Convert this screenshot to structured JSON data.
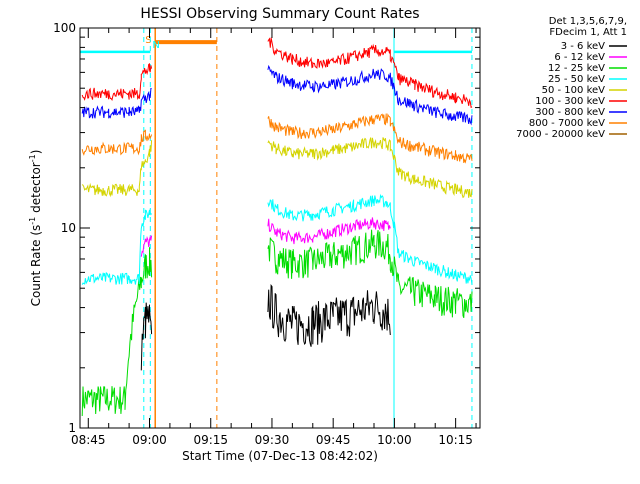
{
  "chart_data": {
    "type": "line",
    "title": "HESSI Observing Summary Count Rates",
    "xlabel": "Start Time (07-Dec-13 08:42:02)",
    "ylabel_main": "Count Rate (s",
    "ylabel_sup": "-1",
    "ylabel_tail": " detector",
    "ylabel_sup2": "-1",
    "ylabel_end": ")",
    "x_range_minutes": [
      -2.03,
      95.97
    ],
    "y_scale": "log",
    "ylim": [
      1,
      100
    ],
    "x_ticks": [
      {
        "m": 0,
        "label": "08:45"
      },
      {
        "m": 15,
        "label": "09:00"
      },
      {
        "m": 30,
        "label": "09:15"
      },
      {
        "m": 45,
        "label": "09:30"
      },
      {
        "m": 60,
        "label": "09:45"
      },
      {
        "m": 75,
        "label": "10:00"
      },
      {
        "m": 90,
        "label": "10:15"
      }
    ],
    "y_ticks": [
      {
        "v": 1,
        "label": "1"
      },
      {
        "v": 10,
        "label": "10"
      },
      {
        "v": 100,
        "label": "100"
      }
    ],
    "legend_header": [
      "Det 1,3,5,6,7,9,",
      "FDecim 1, Att 1"
    ],
    "legend": [
      {
        "label": "3 - 6 keV",
        "color": "#000000"
      },
      {
        "label": "6 - 12 keV",
        "color": "#ff00ff"
      },
      {
        "label": "12 - 25 keV",
        "color": "#00dd00"
      },
      {
        "label": "25 - 50 keV",
        "color": "#00ffff"
      },
      {
        "label": "50 - 100 keV",
        "color": "#d4d400"
      },
      {
        "label": "100 - 300 keV",
        "color": "#ff0000"
      },
      {
        "label": "300 - 800 keV",
        "color": "#0000ff"
      },
      {
        "label": "800 - 7000 keV",
        "color": "#ff8000"
      },
      {
        "label": "7000 - 20000 keV",
        "color": "#a06000"
      }
    ],
    "series": [
      {
        "name": "3 - 6 keV",
        "color": "#000000",
        "points": [
          [
            13,
            2.5
          ],
          [
            14,
            3.5
          ],
          [
            15,
            3.5
          ],
          [
            15.5,
            2.5
          ],
          [
            30,
            null
          ],
          [
            44,
            4.5
          ],
          [
            46,
            3.8
          ],
          [
            50,
            3.3
          ],
          [
            55,
            3.4
          ],
          [
            60,
            3.6
          ],
          [
            65,
            3.8
          ],
          [
            70,
            4.1
          ],
          [
            73,
            3.9
          ],
          [
            74,
            3.6
          ]
        ]
      },
      {
        "name": "6 - 12 keV",
        "color": "#ff00ff",
        "points": [
          [
            13,
            7.5
          ],
          [
            14,
            8.5
          ],
          [
            15,
            8.5
          ],
          [
            15.5,
            8.6
          ],
          [
            30,
            null
          ],
          [
            44,
            10.5
          ],
          [
            46,
            9.5
          ],
          [
            50,
            8.9
          ],
          [
            55,
            9.0
          ],
          [
            60,
            9.6
          ],
          [
            65,
            10.2
          ],
          [
            70,
            10.6
          ],
          [
            73,
            10.3
          ],
          [
            74,
            10.0
          ]
        ]
      },
      {
        "name": "12 - 25 keV",
        "color": "#00dd00",
        "points": [
          [
            -1.5,
            1.4
          ],
          [
            3,
            1.4
          ],
          [
            9,
            1.4
          ],
          [
            13,
            5.5
          ],
          [
            14,
            6.5
          ],
          [
            15,
            6.8
          ],
          [
            15.5,
            6.5
          ],
          [
            30,
            null
          ],
          [
            44,
            8.0
          ],
          [
            46,
            7.2
          ],
          [
            50,
            6.7
          ],
          [
            55,
            6.8
          ],
          [
            60,
            7.3
          ],
          [
            65,
            7.8
          ],
          [
            70,
            8.4
          ],
          [
            73,
            8.2
          ],
          [
            74,
            7.5
          ],
          [
            76,
            5.0
          ],
          [
            80,
            4.8
          ],
          [
            85,
            4.5
          ],
          [
            90,
            4.3
          ],
          [
            94,
            4.2
          ]
        ]
      },
      {
        "name": "25 - 50 keV",
        "color": "#00ffff",
        "points": [
          [
            -1.5,
            5.6
          ],
          [
            5,
            5.6
          ],
          [
            10,
            5.6
          ],
          [
            12.5,
            5.6
          ],
          [
            13,
            10.5
          ],
          [
            14,
            11.5
          ],
          [
            15,
            12.0
          ],
          [
            15.5,
            12.0
          ],
          [
            30,
            null
          ],
          [
            44,
            14.0
          ],
          [
            46,
            12.5
          ],
          [
            50,
            11.5
          ],
          [
            55,
            11.7
          ],
          [
            60,
            12.3
          ],
          [
            65,
            13.0
          ],
          [
            70,
            13.8
          ],
          [
            73,
            13.5
          ],
          [
            74,
            12.8
          ],
          [
            76,
            7.5
          ],
          [
            80,
            6.8
          ],
          [
            85,
            6.3
          ],
          [
            90,
            5.8
          ],
          [
            94,
            5.6
          ]
        ]
      },
      {
        "name": "50 - 100 keV",
        "color": "#d4d400",
        "points": [
          [
            -1.5,
            15.5
          ],
          [
            5,
            15.5
          ],
          [
            10,
            15.5
          ],
          [
            12.5,
            15.5
          ],
          [
            13,
            20.5
          ],
          [
            14,
            21.5
          ],
          [
            15,
            24.0
          ],
          [
            15.5,
            26.0
          ],
          [
            30,
            null
          ],
          [
            44,
            27.0
          ],
          [
            46,
            25.0
          ],
          [
            50,
            23.5
          ],
          [
            55,
            23.5
          ],
          [
            60,
            24.5
          ],
          [
            65,
            25.5
          ],
          [
            70,
            27.0
          ],
          [
            73,
            26.5
          ],
          [
            74,
            25.5
          ],
          [
            76,
            19.0
          ],
          [
            80,
            17.5
          ],
          [
            85,
            16.5
          ],
          [
            90,
            15.5
          ],
          [
            94,
            15.0
          ]
        ]
      },
      {
        "name": "100 - 300 keV",
        "color": "#ff0000",
        "points": [
          [
            -1.5,
            47
          ],
          [
            5,
            47
          ],
          [
            10,
            47
          ],
          [
            12.5,
            47
          ],
          [
            13,
            58
          ],
          [
            14,
            61
          ],
          [
            15,
            62
          ],
          [
            15.5,
            62
          ],
          [
            30,
            null
          ],
          [
            44,
            88
          ],
          [
            46,
            77
          ],
          [
            50,
            70
          ],
          [
            55,
            66
          ],
          [
            60,
            67
          ],
          [
            65,
            72
          ],
          [
            70,
            77
          ],
          [
            73,
            76
          ],
          [
            74,
            73
          ],
          [
            76,
            56
          ],
          [
            80,
            52
          ],
          [
            85,
            48
          ],
          [
            90,
            45
          ],
          [
            94,
            43
          ]
        ]
      },
      {
        "name": "300 - 800 keV",
        "color": "#0000ff",
        "points": [
          [
            -1.5,
            38
          ],
          [
            5,
            38
          ],
          [
            10,
            38
          ],
          [
            12.5,
            38
          ],
          [
            13,
            43
          ],
          [
            14,
            45
          ],
          [
            15,
            46
          ],
          [
            15.5,
            47
          ],
          [
            30,
            null
          ],
          [
            44,
            62
          ],
          [
            46,
            57
          ],
          [
            50,
            53
          ],
          [
            55,
            51
          ],
          [
            60,
            52
          ],
          [
            65,
            55
          ],
          [
            70,
            59
          ],
          [
            73,
            58
          ],
          [
            74,
            56
          ],
          [
            76,
            44
          ],
          [
            80,
            41
          ],
          [
            85,
            38
          ],
          [
            90,
            36
          ],
          [
            94,
            35
          ]
        ]
      },
      {
        "name": "800 - 7000 keV",
        "color": "#ff8000",
        "points": [
          [
            -1.5,
            25
          ],
          [
            5,
            25
          ],
          [
            10,
            25
          ],
          [
            12.5,
            25
          ],
          [
            13,
            28
          ],
          [
            14,
            29
          ],
          [
            15,
            29
          ],
          [
            15.5,
            30
          ],
          [
            30,
            null
          ],
          [
            44,
            35
          ],
          [
            46,
            32
          ],
          [
            50,
            30
          ],
          [
            55,
            30
          ],
          [
            60,
            31
          ],
          [
            65,
            33
          ],
          [
            70,
            35
          ],
          [
            73,
            35
          ],
          [
            74,
            34
          ],
          [
            76,
            27
          ],
          [
            80,
            25.5
          ],
          [
            85,
            24
          ],
          [
            90,
            23
          ],
          [
            94,
            22
          ]
        ]
      },
      {
        "name": "7000 - 20000 keV",
        "color": "#a06000",
        "points": []
      }
    ],
    "attenuator": {
      "color": "#ff8000",
      "start_m": 16.4,
      "end_m": 31.5,
      "level": 85,
      "text": "S"
    },
    "night_marker": {
      "color": "#00ffff",
      "text": "N",
      "level": 76
    }
  }
}
